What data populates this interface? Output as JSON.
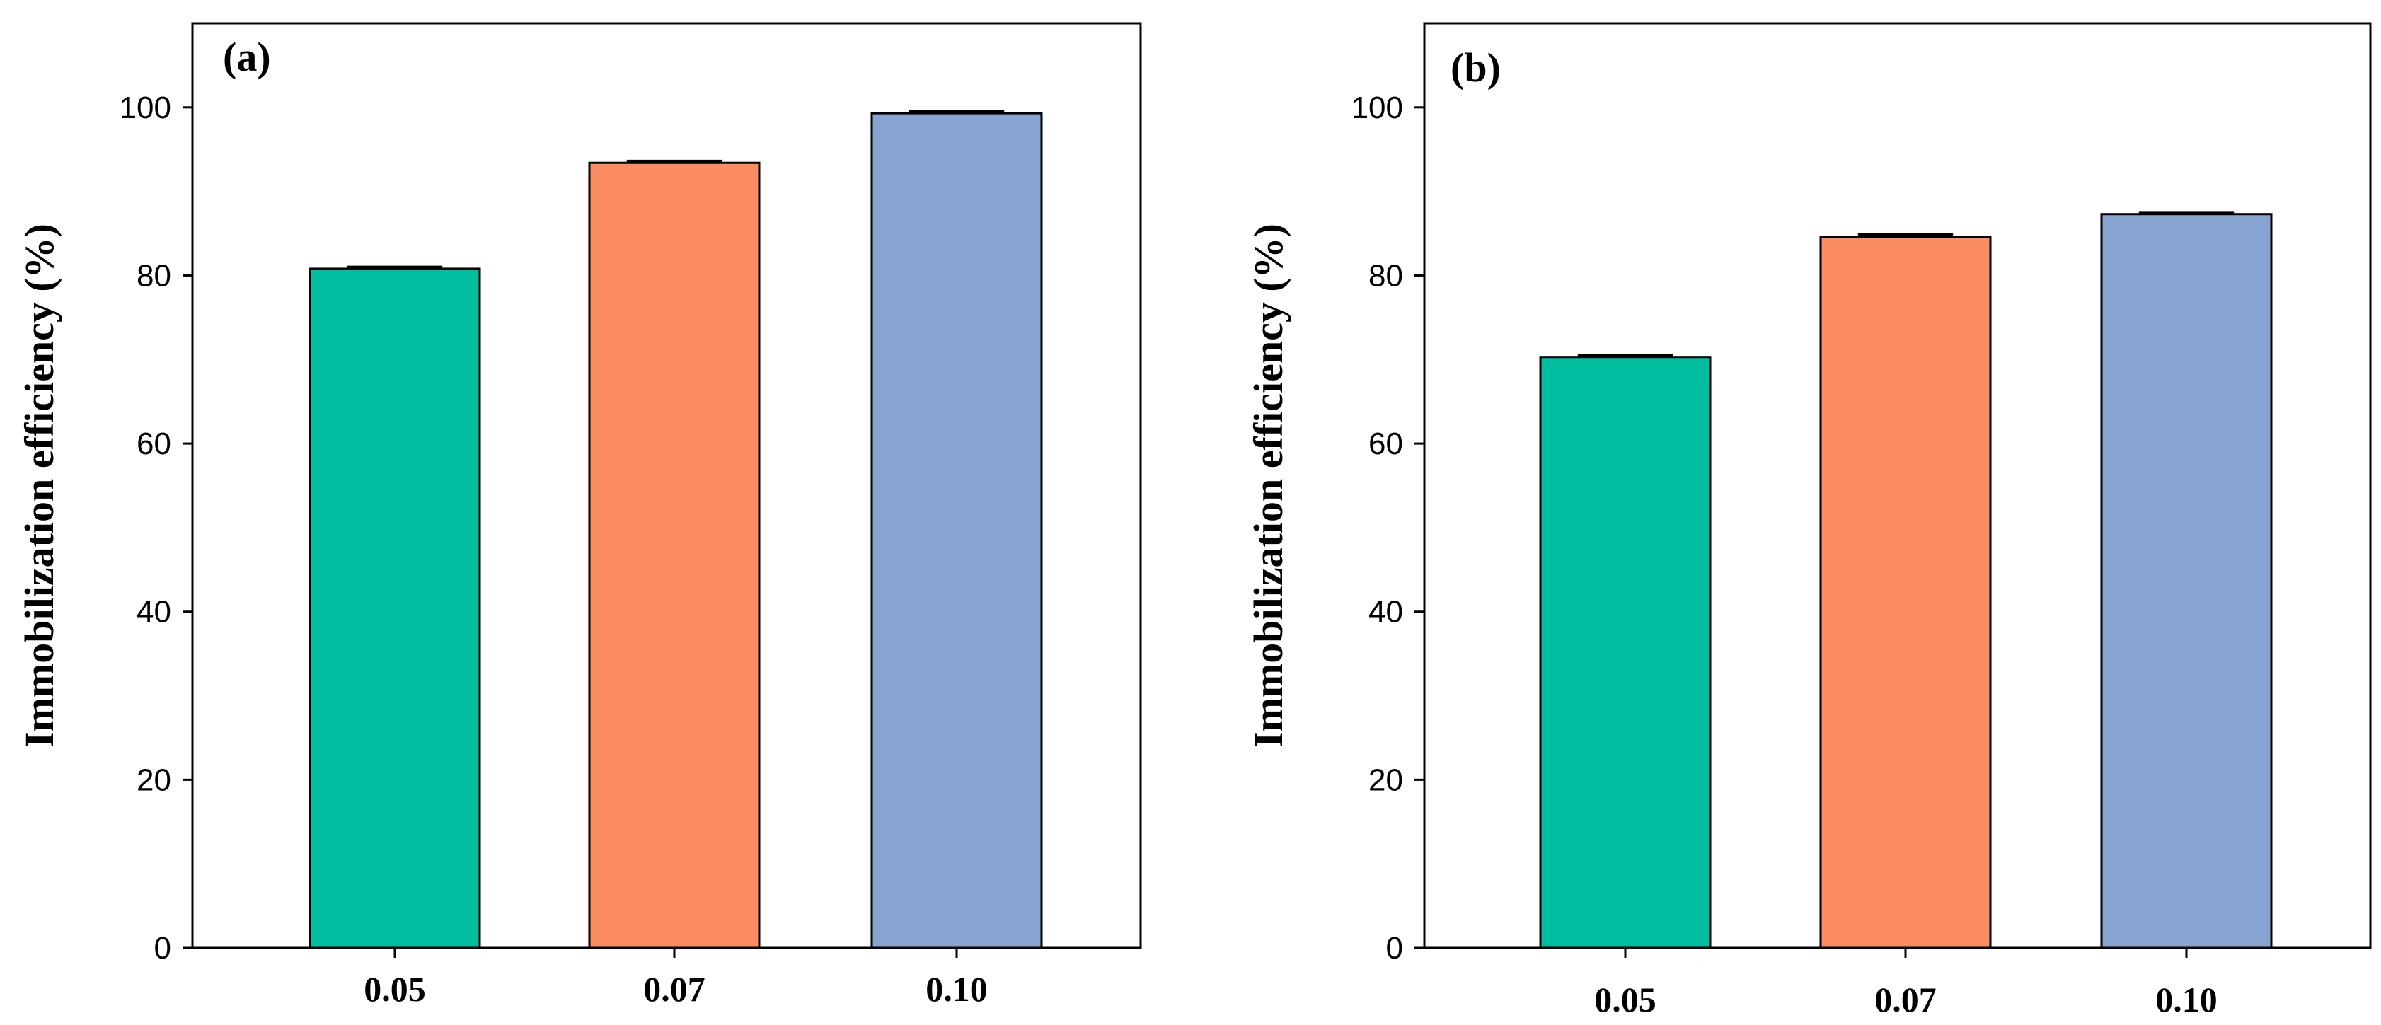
{
  "chart_data": [
    {
      "type": "bar",
      "panel_label": "(a)",
      "categories": [
        "0.05",
        "0.07",
        "0.10"
      ],
      "values": [
        80.8,
        93.4,
        99.3
      ],
      "errors": [
        0.2,
        0.2,
        0.2
      ],
      "colors": [
        "#00bfa0",
        "#fc8d62",
        "#87a4d0"
      ],
      "xlabel": "",
      "ylabel": "Immobilization efficiency (%)",
      "ylim": [
        0,
        110
      ],
      "yticks": [
        "0",
        "20",
        "40",
        "60",
        "80",
        "100"
      ],
      "grid": false
    },
    {
      "type": "bar",
      "panel_label": "(b)",
      "categories": [
        "0.05",
        "0.07",
        "0.10"
      ],
      "values": [
        70.3,
        84.6,
        87.3
      ],
      "errors": [
        0.2,
        0.3,
        0.2
      ],
      "colors": [
        "#00bfa0",
        "#fc8d62",
        "#87a4d0"
      ],
      "xlabel": "",
      "ylabel": "Immobilization efficiency (%)",
      "ylim": [
        0,
        110
      ],
      "yticks": [
        "0",
        "20",
        "40",
        "60",
        "80",
        "100"
      ],
      "grid": false
    }
  ]
}
